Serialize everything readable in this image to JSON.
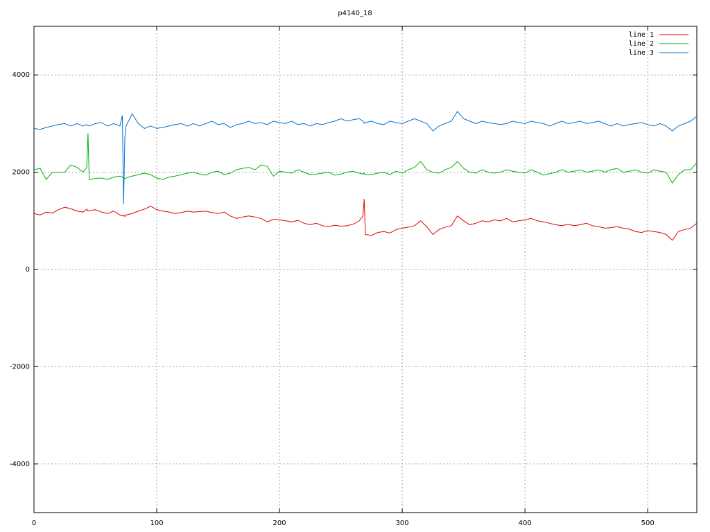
{
  "chart_data": {
    "type": "line",
    "title": "p4140_18",
    "x": [
      0,
      5,
      10,
      15,
      20,
      25,
      30,
      35,
      40,
      43,
      44,
      45,
      50,
      55,
      60,
      65,
      70,
      72,
      73,
      74,
      75,
      80,
      85,
      90,
      95,
      100,
      105,
      110,
      115,
      120,
      125,
      130,
      135,
      140,
      145,
      150,
      155,
      160,
      165,
      170,
      175,
      180,
      185,
      190,
      195,
      200,
      205,
      210,
      215,
      220,
      225,
      230,
      235,
      240,
      245,
      250,
      255,
      260,
      265,
      268,
      269,
      270,
      275,
      280,
      285,
      290,
      295,
      300,
      305,
      310,
      315,
      320,
      325,
      330,
      335,
      340,
      345,
      350,
      355,
      360,
      365,
      370,
      375,
      380,
      385,
      390,
      395,
      400,
      405,
      410,
      415,
      420,
      425,
      430,
      435,
      440,
      445,
      450,
      455,
      460,
      465,
      470,
      475,
      480,
      485,
      490,
      495,
      500,
      505,
      510,
      515,
      520,
      525,
      530,
      535,
      540
    ],
    "series": [
      {
        "name": "line 1",
        "color": "#e00000",
        "values": [
          1150,
          1120,
          1180,
          1160,
          1230,
          1280,
          1250,
          1200,
          1180,
          1240,
          1200,
          1210,
          1230,
          1180,
          1150,
          1200,
          1120,
          1100,
          1120,
          1090,
          1120,
          1150,
          1200,
          1240,
          1300,
          1230,
          1200,
          1180,
          1150,
          1170,
          1200,
          1180,
          1190,
          1200,
          1170,
          1150,
          1180,
          1100,
          1050,
          1080,
          1100,
          1080,
          1050,
          980,
          1030,
          1020,
          1000,
          980,
          1010,
          950,
          920,
          950,
          900,
          880,
          910,
          890,
          900,
          930,
          1000,
          1100,
          1450,
          720,
          700,
          760,
          780,
          750,
          820,
          850,
          870,
          900,
          1000,
          880,
          720,
          820,
          870,
          900,
          1100,
          1000,
          920,
          950,
          1000,
          980,
          1020,
          1000,
          1050,
          980,
          1000,
          1020,
          1050,
          1000,
          980,
          950,
          920,
          900,
          930,
          900,
          920,
          950,
          900,
          880,
          850,
          860,
          880,
          850,
          830,
          780,
          760,
          800,
          780,
          760,
          720,
          600,
          780,
          820,
          850,
          950
        ]
      },
      {
        "name": "line 2",
        "color": "#00b000",
        "values": [
          2050,
          2080,
          1850,
          2000,
          2000,
          2000,
          2150,
          2100,
          2000,
          2100,
          2800,
          1850,
          1870,
          1880,
          1850,
          1900,
          1920,
          1900,
          1880,
          1870,
          1880,
          1920,
          1950,
          1980,
          1950,
          1880,
          1850,
          1900,
          1920,
          1950,
          1980,
          2000,
          1960,
          1940,
          2000,
          2020,
          1950,
          1980,
          2050,
          2080,
          2100,
          2050,
          2150,
          2120,
          1920,
          2020,
          2000,
          1980,
          2050,
          2000,
          1950,
          1960,
          1980,
          2000,
          1940,
          1960,
          2000,
          2020,
          1980,
          1960,
          1980,
          1950,
          1950,
          1980,
          2000,
          1950,
          2020,
          1980,
          2050,
          2100,
          2220,
          2050,
          2000,
          1980,
          2050,
          2100,
          2220,
          2080,
          2000,
          1980,
          2050,
          2000,
          1980,
          2000,
          2050,
          2020,
          2000,
          1980,
          2050,
          2000,
          1940,
          1970,
          2000,
          2050,
          2000,
          2020,
          2050,
          2000,
          2020,
          2050,
          2000,
          2050,
          2080,
          2000,
          2020,
          2050,
          2000,
          1980,
          2050,
          2020,
          2000,
          1780,
          1950,
          2050,
          2050,
          2200
        ]
      },
      {
        "name": "line 3",
        "color": "#0070d0",
        "values": [
          2900,
          2880,
          2920,
          2950,
          2980,
          3000,
          2950,
          3000,
          2950,
          2980,
          2960,
          2950,
          3000,
          3020,
          2950,
          3000,
          2950,
          3170,
          1350,
          2700,
          2950,
          3200,
          3000,
          2900,
          2950,
          2900,
          2920,
          2950,
          2980,
          3000,
          2950,
          3000,
          2950,
          3000,
          3050,
          2980,
          3000,
          2920,
          2980,
          3000,
          3050,
          3000,
          3020,
          2980,
          3050,
          3020,
          3000,
          3050,
          2980,
          3000,
          2950,
          3000,
          2980,
          3020,
          3050,
          3100,
          3050,
          3080,
          3100,
          3050,
          3000,
          3020,
          3050,
          3000,
          2980,
          3050,
          3020,
          3000,
          3050,
          3100,
          3050,
          3000,
          2850,
          2950,
          3000,
          3050,
          3250,
          3100,
          3050,
          3000,
          3050,
          3020,
          3000,
          2980,
          3000,
          3050,
          3020,
          3000,
          3050,
          3020,
          3000,
          2950,
          3000,
          3050,
          3000,
          3020,
          3050,
          3000,
          3020,
          3050,
          3000,
          2950,
          3000,
          2950,
          2980,
          3000,
          3020,
          2980,
          2950,
          3000,
          2950,
          2850,
          2950,
          3000,
          3050,
          3150
        ]
      }
    ],
    "xlim": [
      0,
      540
    ],
    "xticks": [
      0,
      100,
      200,
      300,
      400,
      500
    ],
    "ylim": [
      -5000,
      5000
    ],
    "yticks": [
      -4000,
      -2000,
      0,
      2000,
      4000
    ],
    "grid": true,
    "legend": "top-right"
  }
}
